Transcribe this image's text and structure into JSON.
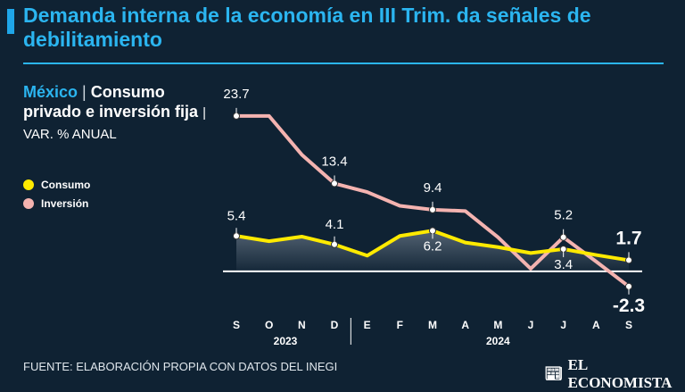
{
  "header": {
    "title": "Demanda interna de la economía en III Trim. da señales de debilitamiento"
  },
  "panel": {
    "country": "México",
    "separator": "|",
    "subject": "Consumo privado e in­versión fija",
    "unit": "| VAR. % ANUAL"
  },
  "legend": [
    {
      "label": "Consumo",
      "color": "#ffea00"
    },
    {
      "label": "Inversión",
      "color": "#f4b3b0"
    }
  ],
  "chart_data": {
    "type": "line",
    "title": "México | Consumo privado e inversión fija | VAR. % ANUAL",
    "categories": [
      "S",
      "O",
      "N",
      "D",
      "E",
      "F",
      "M",
      "A",
      "M",
      "J",
      "J",
      "A",
      "S"
    ],
    "category_groups": [
      {
        "label": "2023",
        "start": 0,
        "end": 3
      },
      {
        "label": "2024",
        "start": 4,
        "end": 12
      }
    ],
    "series": [
      {
        "name": "Consumo",
        "color": "#ffea00",
        "values": [
          5.4,
          4.6,
          5.3,
          4.1,
          2.4,
          5.4,
          6.2,
          4.4,
          3.7,
          2.8,
          3.4,
          2.5,
          1.7
        ],
        "labels": [
          {
            "index": 0,
            "text": "5.4"
          },
          {
            "index": 3,
            "text": "4.1"
          },
          {
            "index": 6,
            "text": "6.2"
          },
          {
            "index": 10,
            "text": "3.4"
          },
          {
            "index": 12,
            "text": "1.7"
          }
        ]
      },
      {
        "name": "Inversión",
        "color": "#f4b3b0",
        "values": [
          23.7,
          23.7,
          17.8,
          13.4,
          12.1,
          10.0,
          9.4,
          9.2,
          5.2,
          0.4,
          5.2,
          1.5,
          -2.3
        ],
        "labels": [
          {
            "index": 0,
            "text": "23.7"
          },
          {
            "index": 3,
            "text": "13.4"
          },
          {
            "index": 6,
            "text": "9.4"
          },
          {
            "index": 10,
            "text": "5.2"
          },
          {
            "index": 12,
            "text": "-2.3"
          }
        ]
      }
    ],
    "ylim": [
      -2.6,
      24.5
    ],
    "baseline": 0
  },
  "footer": {
    "source": "FUENTE: ELABORACIÓN PROPIA CON DATOS DEL INEGI",
    "brand": "EL ECONOMISTA",
    "brand_icon": "newspaper-icon"
  }
}
